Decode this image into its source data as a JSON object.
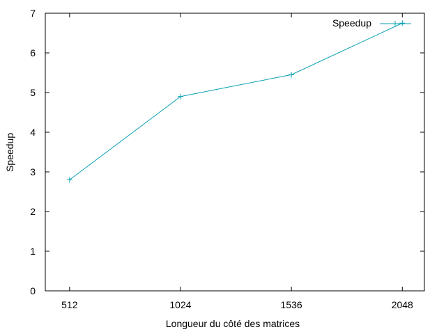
{
  "chart_data": {
    "type": "line",
    "x": [
      512,
      1024,
      1536,
      2048
    ],
    "x_ticks": [
      512,
      1024,
      1536,
      2048
    ],
    "y_ticks": [
      0,
      1,
      2,
      3,
      4,
      5,
      6,
      7
    ],
    "xlim": [
      400,
      2150
    ],
    "ylim": [
      0,
      7
    ],
    "xlabel": "Longueur du côté des matrices",
    "ylabel": "Speedup",
    "grid": false,
    "legend_position": "top-right",
    "series": [
      {
        "name": "Speedup",
        "color": "#0aa0b4",
        "marker": "plus",
        "values": [
          2.8,
          4.9,
          5.45,
          6.75
        ]
      }
    ]
  }
}
